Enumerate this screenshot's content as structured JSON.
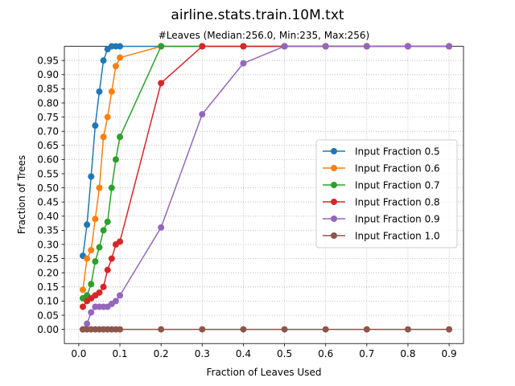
{
  "chart_data": {
    "type": "line",
    "title": "airline.stats.train.10M.txt",
    "subtitle": "#Leaves (Median:256.0, Min:235, Max:256)",
    "xlabel": "Fraction of Leaves Used",
    "ylabel": "Fraction of Trees",
    "xlim": [
      -0.035,
      0.935
    ],
    "ylim": [
      -0.05,
      1.0
    ],
    "xticks": [
      0.0,
      0.1,
      0.2,
      0.3,
      0.4,
      0.5,
      0.6,
      0.7,
      0.8,
      0.9
    ],
    "xtick_labels": [
      "0.0",
      "0.1",
      "0.2",
      "0.3",
      "0.4",
      "0.5",
      "0.6",
      "0.7",
      "0.8",
      "0.9"
    ],
    "yticks": [
      0.0,
      0.05,
      0.1,
      0.15,
      0.2,
      0.25,
      0.3,
      0.35,
      0.4,
      0.45,
      0.5,
      0.55,
      0.6,
      0.65,
      0.7,
      0.75,
      0.8,
      0.85,
      0.9,
      0.95
    ],
    "ytick_labels": [
      "0.00",
      "0.05",
      "0.10",
      "0.15",
      "0.20",
      "0.25",
      "0.30",
      "0.35",
      "0.40",
      "0.45",
      "0.50",
      "0.55",
      "0.60",
      "0.65",
      "0.70",
      "0.75",
      "0.80",
      "0.85",
      "0.90",
      "0.95"
    ],
    "grid": true,
    "legend_position": "center-right",
    "x": [
      0.01,
      0.02,
      0.03,
      0.04,
      0.05,
      0.06,
      0.07,
      0.08,
      0.09,
      0.1,
      0.2,
      0.3,
      0.4,
      0.5,
      0.6,
      0.7,
      0.8,
      0.9
    ],
    "series": [
      {
        "name": "Input Fraction 0.5",
        "color": "#1f77b4",
        "values": [
          0.26,
          0.37,
          0.54,
          0.72,
          0.84,
          0.95,
          0.99,
          1.0,
          1.0,
          1.0,
          1.0,
          1.0,
          1.0,
          1.0,
          1.0,
          1.0,
          1.0,
          1.0
        ]
      },
      {
        "name": "Input Fraction 0.6",
        "color": "#ff7f0e",
        "values": [
          0.14,
          0.25,
          0.28,
          0.39,
          0.5,
          0.68,
          0.75,
          0.84,
          0.93,
          0.96,
          1.0,
          1.0,
          1.0,
          1.0,
          1.0,
          1.0,
          1.0,
          1.0
        ]
      },
      {
        "name": "Input Fraction 0.7",
        "color": "#2ca02c",
        "values": [
          0.11,
          0.12,
          0.16,
          0.24,
          0.29,
          0.35,
          0.38,
          0.5,
          0.6,
          0.68,
          1.0,
          1.0,
          1.0,
          1.0,
          1.0,
          1.0,
          1.0,
          1.0
        ]
      },
      {
        "name": "Input Fraction 0.8",
        "color": "#d62728",
        "values": [
          0.08,
          0.1,
          0.11,
          0.12,
          0.13,
          0.15,
          0.21,
          0.25,
          0.3,
          0.31,
          0.87,
          1.0,
          1.0,
          1.0,
          1.0,
          1.0,
          1.0,
          1.0
        ]
      },
      {
        "name": "Input Fraction 0.9",
        "color": "#9467bd",
        "values": [
          0.0,
          0.02,
          0.06,
          0.08,
          0.08,
          0.08,
          0.08,
          0.09,
          0.1,
          0.12,
          0.36,
          0.76,
          0.94,
          1.0,
          1.0,
          1.0,
          1.0,
          1.0
        ]
      },
      {
        "name": "Input Fraction 1.0",
        "color": "#8c564b",
        "values": [
          0.0,
          0.0,
          0.0,
          0.0,
          0.0,
          0.0,
          0.0,
          0.0,
          0.0,
          0.0,
          0.0,
          0.0,
          0.0,
          0.0,
          0.0,
          0.0,
          0.0,
          0.0
        ]
      }
    ]
  }
}
